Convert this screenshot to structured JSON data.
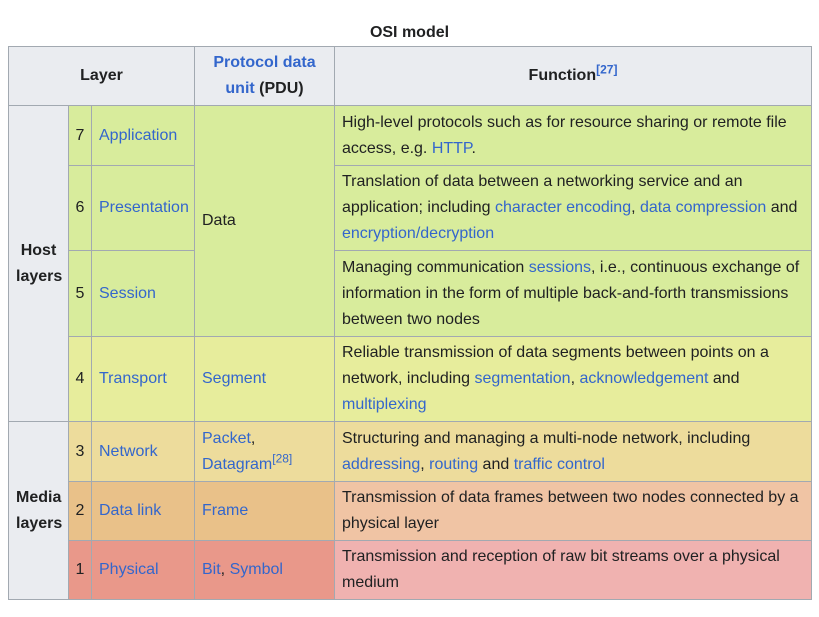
{
  "caption": "OSI model",
  "header": {
    "layer": "Layer",
    "pdu_link": "Protocol data unit",
    "pdu_suffix": " (PDU)",
    "function": "Function",
    "function_ref": "[27]"
  },
  "groups": {
    "host": [
      "Host",
      "layers"
    ],
    "media": [
      "Media",
      "layers"
    ]
  },
  "rows": {
    "application": {
      "num": "7",
      "name": "Application",
      "fn_a": "High-level protocols such as for resource sharing or remote file access, e.g. ",
      "fn_link1": "HTTP",
      "fn_b": "."
    },
    "presentation": {
      "num": "6",
      "name": "Presentation",
      "fn_a": "Translation of data between a networking service and an application; including ",
      "fn_link1": "character encoding",
      "fn_b": ", ",
      "fn_link2": "data compression",
      "fn_c": " and ",
      "fn_link3": "encryption/decryption"
    },
    "session": {
      "num": "5",
      "name": "Session",
      "fn_a": "Managing communication ",
      "fn_link1": "sessions",
      "fn_b": ", i.e., continuous exchange of information in the form of multiple back-and-forth transmissions between two nodes"
    },
    "transport": {
      "num": "4",
      "name": "Transport",
      "pdu": "Segment",
      "fn_a": "Reliable transmission of data segments between points on a network, including ",
      "fn_link1": "segmentation",
      "fn_b": ", ",
      "fn_link2": "acknowledgement",
      "fn_c": " and ",
      "fn_link3": "multiplexing"
    },
    "network": {
      "num": "3",
      "name": "Network",
      "pdu_1": "Packet",
      "pdu_sep": ",",
      "pdu_2": "Datagram",
      "pdu_ref": "[28]",
      "fn_a": "Structuring and managing a multi-node network, including ",
      "fn_link1": "addressing",
      "fn_b": ", ",
      "fn_link2": "routing",
      "fn_c": " and ",
      "fn_link3": "traffic control"
    },
    "datalink": {
      "num": "2",
      "name": "Data link",
      "pdu": "Frame",
      "fn_a": "Transmission of data frames between two nodes connected by a physical layer"
    },
    "physical": {
      "num": "1",
      "name": "Physical",
      "pdu_1": "Bit",
      "pdu_sep": ", ",
      "pdu_2": "Symbol",
      "fn_a": "Transmission and reception of raw bit streams over a physical medium"
    }
  },
  "data_pdu": "Data",
  "colors": {
    "link": "#3366cc",
    "header_bg": "#eaecf0",
    "border": "#a2a9b1",
    "host_upper": "#d8ec9c",
    "transport": "#e7ed9c",
    "network": "#eddc9c",
    "datalink": "#e9c189",
    "physical": "#e9988a"
  }
}
